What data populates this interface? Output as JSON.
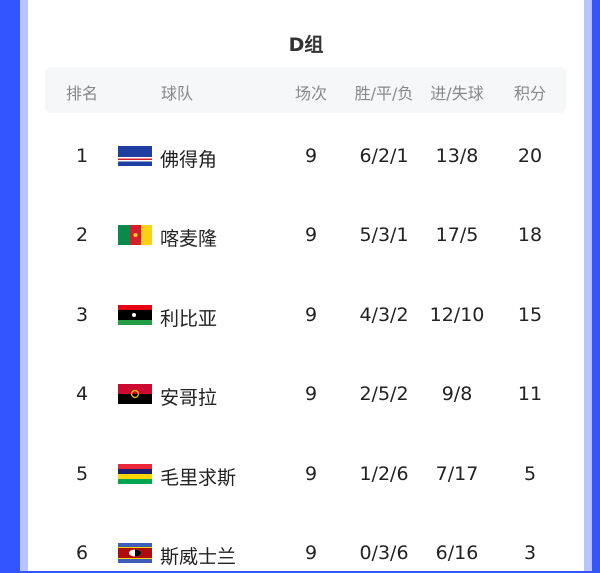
{
  "group_title": "D组",
  "headers": {
    "rank": "排名",
    "team": "球队",
    "played": "场次",
    "wdl": "胜/平/负",
    "goals": "进/失球",
    "points": "积分"
  },
  "rows": [
    {
      "rank": "1",
      "team": "佛得角",
      "flag": "cape-verde-flag",
      "played": "9",
      "wdl": "6/2/1",
      "goals": "13/8",
      "points": "20"
    },
    {
      "rank": "2",
      "team": "喀麦隆",
      "flag": "cameroon-flag",
      "played": "9",
      "wdl": "5/3/1",
      "goals": "17/5",
      "points": "18"
    },
    {
      "rank": "3",
      "team": "利比亚",
      "flag": "libya-flag",
      "played": "9",
      "wdl": "4/3/2",
      "goals": "12/10",
      "points": "15"
    },
    {
      "rank": "4",
      "team": "安哥拉",
      "flag": "angola-flag",
      "played": "9",
      "wdl": "2/5/2",
      "goals": "9/8",
      "points": "11"
    },
    {
      "rank": "5",
      "team": "毛里求斯",
      "flag": "mauritius-flag",
      "played": "9",
      "wdl": "1/2/6",
      "goals": "7/17",
      "points": "5"
    },
    {
      "rank": "6",
      "team": "斯威士兰",
      "flag": "eswatini-flag",
      "played": "9",
      "wdl": "0/3/6",
      "goals": "6/16",
      "points": "3"
    }
  ],
  "colors": {
    "background": "#3355ff",
    "border": "#b8c4ff",
    "header_bg": "#f5f7f9"
  }
}
